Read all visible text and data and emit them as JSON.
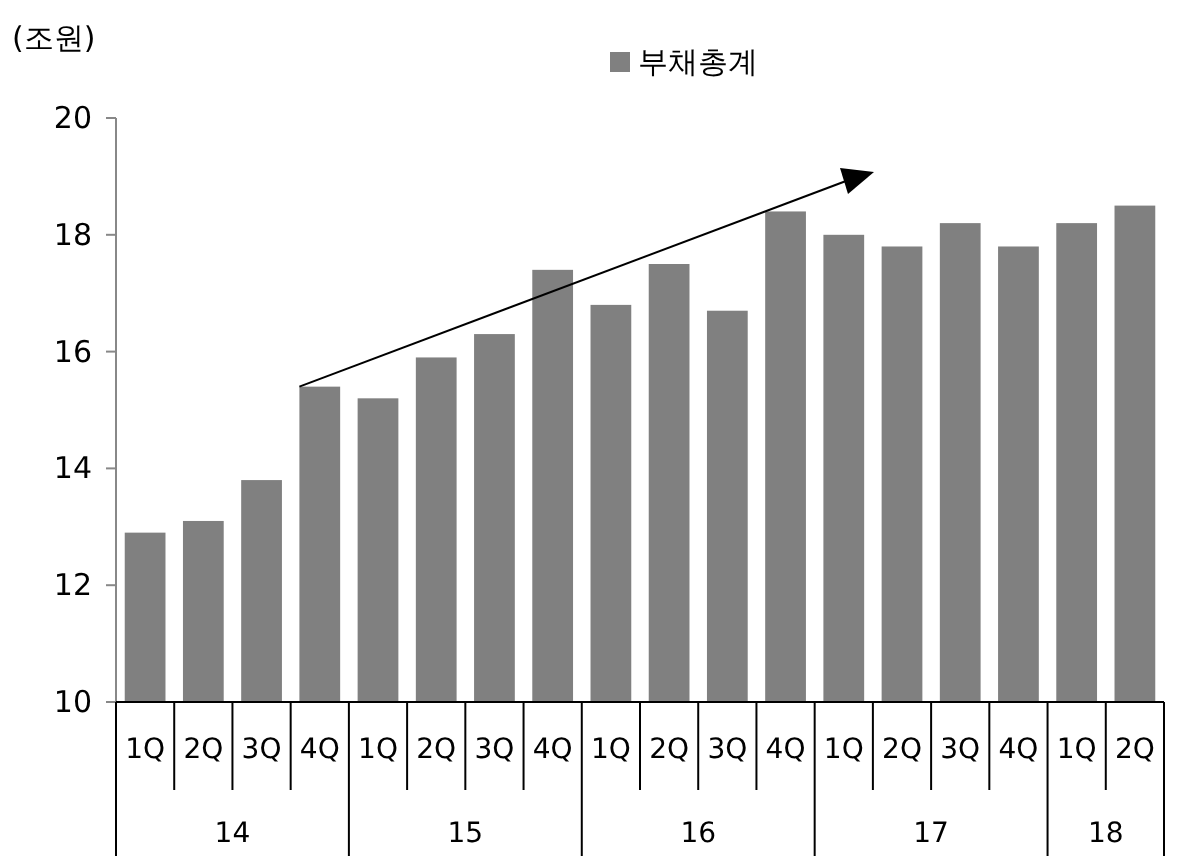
{
  "chart_data": {
    "type": "bar",
    "ylabel": "(조원)",
    "categories": [
      "1Q",
      "2Q",
      "3Q",
      "4Q",
      "1Q",
      "2Q",
      "3Q",
      "4Q",
      "1Q",
      "2Q",
      "3Q",
      "4Q",
      "1Q",
      "2Q",
      "3Q",
      "4Q",
      "1Q",
      "2Q"
    ],
    "series": [
      {
        "name": "부채총계",
        "color": "#808080",
        "values": [
          12.9,
          13.1,
          13.8,
          15.4,
          15.2,
          15.9,
          16.3,
          17.4,
          16.8,
          17.5,
          16.7,
          18.4,
          18.0,
          17.8,
          18.2,
          17.8,
          18.2,
          18.5
        ]
      }
    ],
    "annotations": [
      "14",
      "15",
      "16",
      "17",
      "18"
    ],
    "ylim": [
      10,
      20
    ],
    "yticks": [
      10,
      12,
      14,
      16,
      18,
      20
    ],
    "legend": "top",
    "grid": false
  }
}
